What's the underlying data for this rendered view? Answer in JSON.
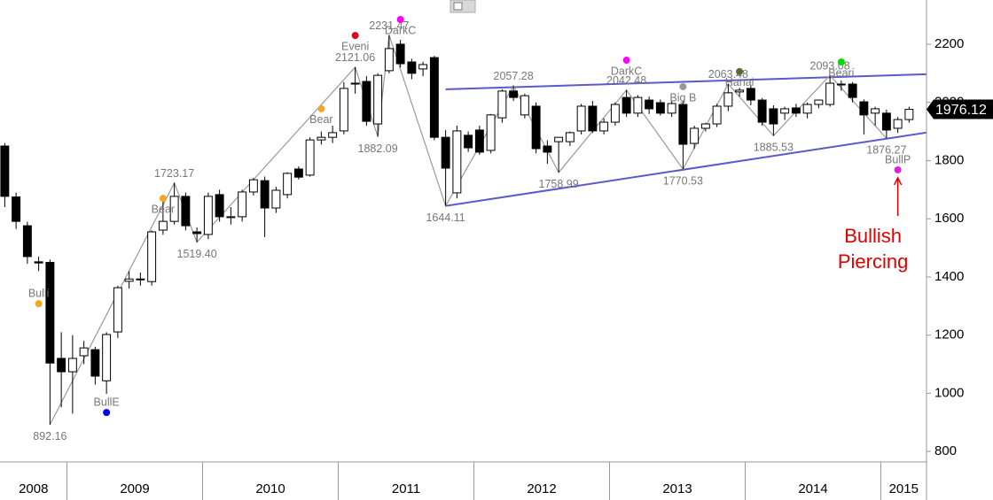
{
  "chart_data": {
    "type": "candlestick",
    "categories": [
      "2008",
      null,
      null,
      null,
      null,
      null,
      "2009",
      null,
      null,
      null,
      null,
      null,
      null,
      null,
      null,
      null,
      null,
      null,
      "2010",
      null,
      null,
      null,
      null,
      null,
      null,
      null,
      null,
      null,
      null,
      null,
      "2011",
      null,
      null,
      null,
      null,
      null,
      null,
      null,
      null,
      null,
      null,
      null,
      "2012",
      null,
      null,
      null,
      null,
      null,
      null,
      null,
      null,
      null,
      null,
      null,
      "2013",
      null,
      null,
      null,
      null,
      null,
      null,
      null,
      null,
      null,
      null,
      null,
      "2014",
      null,
      null,
      null,
      null,
      null,
      null,
      null,
      null,
      null,
      null,
      null,
      "2015",
      null,
      null
    ],
    "open": [
      1850,
      1675,
      1576,
      1452,
      1450,
      1120,
      1074,
      1129,
      1150,
      1043,
      1211,
      1385,
      1393,
      1384,
      1561,
      1591,
      1677,
      1555,
      1546,
      1683,
      1607,
      1607,
      1692,
      1731,
      1637,
      1683,
      1771,
      1750,
      1871,
      1880,
      1902,
      2063,
      2072,
      1926,
      2109,
      2200,
      2139,
      2115,
      2154,
      1880,
      1689,
      1887,
      1905,
      1835,
      1947,
      2039,
      1957,
      1987,
      1850,
      1865,
      1865,
      1902,
      1987,
      1902,
      1932,
      2017,
      1963,
      2008,
      1999,
      1963,
      1993,
      1859,
      1911,
      1926,
      1987,
      2036,
      2048,
      2008,
      1978,
      1963,
      1981,
      1963,
      1993,
      1993,
      2063,
      2063,
      2002,
      1963,
      1963,
      1911,
      1941
    ],
    "high": [
      1860,
      1690,
      1590,
      1470,
      1460,
      1210,
      1200,
      1180,
      1160,
      1210,
      1370,
      1420,
      1415,
      1560,
      1670,
      1723.17,
      1690,
      1570,
      1690,
      1700,
      1640,
      1700,
      1740,
      1745,
      1710,
      1760,
      1780,
      1880,
      1900,
      1920,
      2070,
      2121.06,
      2090,
      2100,
      2231.47,
      2215,
      2150,
      2140,
      2160,
      1905,
      1920,
      1900,
      1920,
      1960,
      2045,
      2057.28,
      2030,
      2000,
      1870,
      1880,
      1900,
      1995,
      2005,
      1945,
      2000,
      2042.48,
      2025,
      2020,
      2010,
      2005,
      2005,
      1920,
      1930,
      1995,
      2063.48,
      2050,
      2060,
      2015,
      1990,
      1985,
      1995,
      2000,
      2010,
      2093.08,
      2075,
      2070,
      2010,
      1985,
      1975,
      1950,
      1985
    ],
    "low": [
      1640,
      1565,
      1445,
      1420,
      892.16,
      952,
      930,
      1100,
      1030,
      998,
      1190,
      1360,
      1370,
      1370,
      1545,
      1580,
      1560,
      1519.4,
      1530,
      1590,
      1580,
      1590,
      1680,
      1537,
      1620,
      1670,
      1735,
      1745,
      1855,
      1860,
      1890,
      2030,
      1920,
      1882.09,
      2100,
      2120,
      2080,
      2090,
      1870,
      1644.11,
      1670,
      1830,
      1820,
      1825,
      1930,
      2005,
      1945,
      1825,
      1789,
      1758.99,
      1850,
      1890,
      1895,
      1890,
      1920,
      1950,
      1950,
      1960,
      1955,
      1950,
      1770.53,
      1840,
      1900,
      1915,
      1970,
      2020,
      1990,
      1920,
      1885.53,
      1940,
      1950,
      1945,
      1980,
      1985,
      2040,
      2000,
      1890,
      1920,
      1876.27,
      1895,
      1930
    ],
    "close": [
      1677,
      1591,
      1470,
      1448,
      1104,
      1074,
      1120,
      1156,
      1059,
      1202,
      1363,
      1393,
      1390,
      1555,
      1591,
      1677,
      1576,
      1549,
      1677,
      1607,
      1604,
      1692,
      1734,
      1637,
      1698,
      1756,
      1743,
      1871,
      1880,
      1896,
      2048,
      2066,
      1935,
      2093,
      2185,
      2133,
      2100,
      2130,
      1880,
      1774,
      1902,
      1844,
      1829,
      1957,
      2039,
      2017,
      2023,
      1841,
      1829,
      1880,
      1896,
      1987,
      1902,
      1932,
      1993,
      1963,
      2017,
      1978,
      1963,
      1996,
      1856,
      1911,
      1926,
      1987,
      2033,
      2042,
      2008,
      1932,
      1926,
      1978,
      1963,
      1993,
      2008,
      2066,
      2060,
      2017,
      1957,
      1978,
      1905,
      1941,
      1976.12
    ],
    "up_color": "#ffffff",
    "down_color": "#000000",
    "ylim": [
      764,
      2352
    ],
    "yticks": [
      800,
      1000,
      1200,
      1400,
      1600,
      1800,
      2000,
      2200
    ],
    "grid": false,
    "last_price": 1976.12,
    "zigzag": {
      "color": "#999999",
      "x": [
        4,
        15,
        17,
        31,
        33,
        34,
        39,
        45,
        49,
        55,
        60,
        64,
        68,
        73,
        78
      ],
      "values": [
        892.16,
        1723.17,
        1519.4,
        2121.06,
        1882.09,
        2231.47,
        1644.11,
        2057.28,
        1758.99,
        2042.48,
        1770.53,
        2063.48,
        1885.53,
        2093.08,
        1876.27
      ],
      "value_labels": [
        "892.16",
        "1723.17",
        "1519.40",
        "2121.06",
        "1882.09",
        "2231.47",
        "1644.11",
        "2057.28",
        "1758.99",
        "2042.48",
        "1770.53",
        "2063.48",
        "1885.53",
        "2093.08",
        "1876.27"
      ]
    },
    "trendlines": [
      {
        "color": "#5a5ac8",
        "x": [
          39,
          81.5
        ],
        "values": [
          2045,
          2097
        ]
      },
      {
        "color": "#5a5ac8",
        "x": [
          39,
          81.5
        ],
        "values": [
          1644.11,
          1896
        ]
      }
    ],
    "signals": {
      "labels": [
        "Bulli",
        "BullE",
        "Bear",
        "Bear",
        "Eveni",
        "DarkC",
        "DarkC",
        "Big B",
        "Hanai",
        "Beari",
        "BullP"
      ],
      "x": [
        3,
        9,
        14,
        28,
        31,
        35,
        55,
        60,
        65,
        74,
        79
      ],
      "values": [
        1308,
        934,
        1670,
        1978,
        2230,
        2285,
        2145,
        2054,
        2106,
        2139,
        1768
      ],
      "colors": [
        "#f5a623",
        "#0000ff",
        "#f5a623",
        "#f5a623",
        "#e8001c",
        "#ff00ff",
        "#ff00ff",
        "#999999",
        "#556b2f",
        "#00dd00",
        "#e020e0"
      ]
    },
    "annotation": {
      "lines": [
        "Bullish",
        "Piercing"
      ],
      "color": "#e00000"
    }
  }
}
